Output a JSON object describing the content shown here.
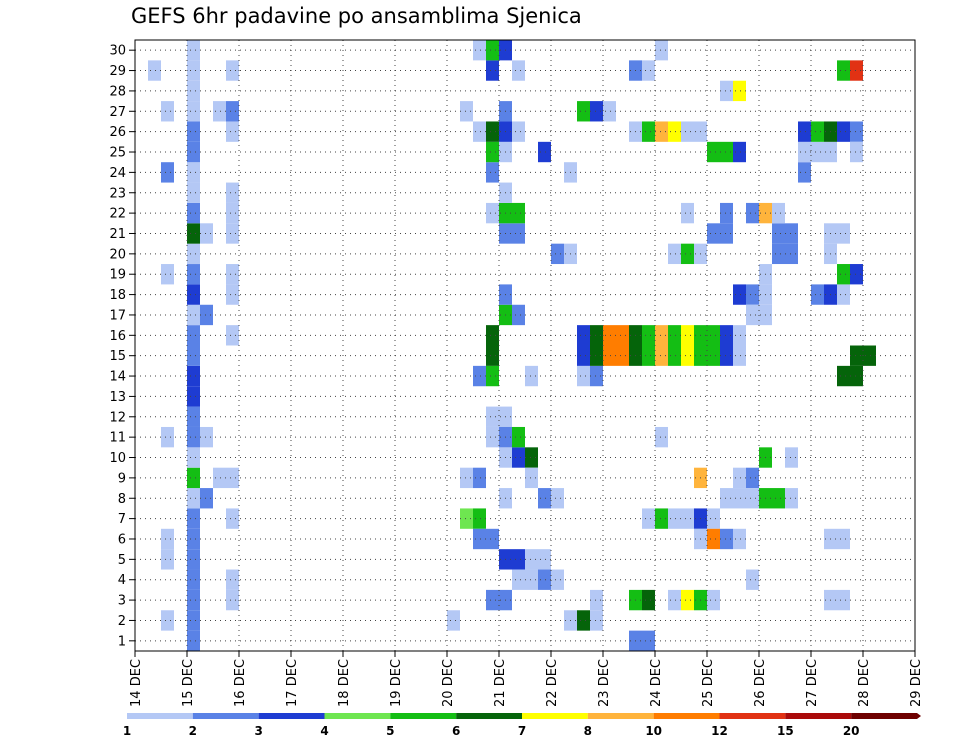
{
  "chart_data": {
    "type": "heatmap",
    "title": "GEFS 6hr padavine po ansamblima Sjenica",
    "x_tick_labels": [
      "14 DEC",
      "15 DEC",
      "16 DEC",
      "17 DEC",
      "18 DEC",
      "19 DEC",
      "20 DEC",
      "21 DEC",
      "22 DEC",
      "23 DEC",
      "24 DEC",
      "25 DEC",
      "26 DEC",
      "27 DEC",
      "28 DEC",
      "29 DEC"
    ],
    "y_tick_labels": [
      "1",
      "2",
      "3",
      "4",
      "5",
      "6",
      "7",
      "8",
      "9",
      "10",
      "11",
      "12",
      "13",
      "14",
      "15",
      "16",
      "17",
      "18",
      "19",
      "20",
      "21",
      "22",
      "23",
      "24",
      "25",
      "26",
      "27",
      "28",
      "29",
      "30"
    ],
    "time_step": "6hr",
    "ylim": [
      0.5,
      30.5
    ],
    "grid": true,
    "legend": {
      "placement": "bottom",
      "labels": [
        "1",
        "2",
        "3",
        "4",
        "5",
        "6",
        "7",
        "8",
        "10",
        "12",
        "15",
        "20"
      ],
      "colors": [
        "#b4c8f5",
        "#5a82e6",
        "#1e3cd2",
        "#6ee650",
        "#14be14",
        "#05640a",
        "#ffff00",
        "#ffb43c",
        "#ff7d00",
        "#e13214",
        "#aa0a0a",
        "#6e0000"
      ]
    },
    "cells": [
      [
        15,
        1,
        2
      ],
      [
        15,
        2,
        2
      ],
      [
        15,
        3,
        2
      ],
      [
        15,
        4,
        2
      ],
      [
        15,
        5,
        2
      ],
      [
        15,
        6,
        2
      ],
      [
        15,
        7,
        2
      ],
      [
        15,
        8,
        1
      ],
      [
        15,
        9,
        5
      ],
      [
        15,
        10,
        1
      ],
      [
        15,
        11,
        2
      ],
      [
        15,
        12,
        2
      ],
      [
        15,
        13,
        3
      ],
      [
        15,
        14,
        3
      ],
      [
        15,
        15,
        2
      ],
      [
        15,
        16,
        2
      ],
      [
        15,
        17,
        1
      ],
      [
        15,
        18,
        3
      ],
      [
        15,
        19,
        2
      ],
      [
        15,
        20,
        1
      ],
      [
        15,
        21,
        6
      ],
      [
        15,
        22,
        2
      ],
      [
        15,
        23,
        1
      ],
      [
        15,
        24,
        1
      ],
      [
        15,
        25,
        2
      ],
      [
        15,
        26,
        2
      ],
      [
        15,
        27,
        1
      ],
      [
        15,
        28,
        1
      ],
      [
        15,
        29,
        1
      ],
      [
        15,
        30,
        1
      ],
      [
        14.5,
        2,
        1
      ],
      [
        14.5,
        5,
        1
      ],
      [
        14.5,
        6,
        1
      ],
      [
        14.5,
        11,
        1
      ],
      [
        14.5,
        19,
        1
      ],
      [
        14.5,
        24,
        2
      ],
      [
        14.5,
        27,
        1
      ],
      [
        14.25,
        29,
        1
      ],
      [
        15.25,
        8,
        2
      ],
      [
        15.25,
        11,
        1
      ],
      [
        15.25,
        17,
        2
      ],
      [
        15.25,
        21,
        1
      ],
      [
        15.5,
        9,
        1
      ],
      [
        15.75,
        3,
        1
      ],
      [
        15.75,
        4,
        1
      ],
      [
        15.75,
        7,
        1
      ],
      [
        15.75,
        9,
        1
      ],
      [
        15.75,
        16,
        1
      ],
      [
        15.75,
        18,
        1
      ],
      [
        15.75,
        19,
        1
      ],
      [
        15.75,
        21,
        1
      ],
      [
        15.75,
        22,
        1
      ],
      [
        15.75,
        23,
        1
      ],
      [
        15.75,
        26,
        1
      ],
      [
        15.75,
        27,
        2
      ],
      [
        15.5,
        27,
        1
      ],
      [
        15.75,
        29,
        1
      ],
      [
        20,
        2,
        1
      ],
      [
        20.25,
        7,
        4
      ],
      [
        20.5,
        7,
        5
      ],
      [
        20.25,
        9,
        1
      ],
      [
        20.5,
        9,
        2
      ],
      [
        20.25,
        27,
        1
      ],
      [
        20.5,
        26,
        1
      ],
      [
        20.75,
        3,
        2
      ],
      [
        21,
        3,
        2
      ],
      [
        20.5,
        6,
        2
      ],
      [
        20.75,
        6,
        2
      ],
      [
        20.75,
        11,
        1
      ],
      [
        20.75,
        12,
        1
      ],
      [
        21,
        12,
        1
      ],
      [
        20.5,
        14,
        2
      ],
      [
        20.75,
        14,
        5
      ],
      [
        20.75,
        15,
        6
      ],
      [
        20.75,
        16,
        6
      ],
      [
        20.75,
        22,
        1
      ],
      [
        20.75,
        24,
        2
      ],
      [
        20.75,
        25,
        5
      ],
      [
        20.75,
        26,
        6
      ],
      [
        20.75,
        29,
        3
      ],
      [
        20.5,
        30,
        1
      ],
      [
        20.75,
        30,
        5
      ],
      [
        21,
        5,
        3
      ],
      [
        21.25,
        5,
        3
      ],
      [
        21,
        8,
        1
      ],
      [
        21,
        10,
        1
      ],
      [
        21,
        11,
        2
      ],
      [
        21,
        17,
        5
      ],
      [
        21,
        18,
        2
      ],
      [
        21,
        21,
        2
      ],
      [
        21.25,
        21,
        2
      ],
      [
        21,
        22,
        5
      ],
      [
        21.25,
        22,
        5
      ],
      [
        21,
        23,
        1
      ],
      [
        21,
        25,
        1
      ],
      [
        21,
        26,
        3
      ],
      [
        21,
        27,
        2
      ],
      [
        21,
        30,
        3
      ],
      [
        21.25,
        4,
        1
      ],
      [
        21.5,
        4,
        1
      ],
      [
        21.25,
        10,
        3
      ],
      [
        21.5,
        10,
        6
      ],
      [
        21.25,
        11,
        5
      ],
      [
        21.25,
        17,
        2
      ],
      [
        21.25,
        26,
        1
      ],
      [
        21.25,
        29,
        1
      ],
      [
        21.5,
        5,
        1
      ],
      [
        21.75,
        5,
        1
      ],
      [
        21.75,
        4,
        2
      ],
      [
        22,
        4,
        1
      ],
      [
        21.75,
        8,
        2
      ],
      [
        22,
        8,
        1
      ],
      [
        21.5,
        9,
        1
      ],
      [
        21.5,
        14,
        1
      ],
      [
        21.75,
        25,
        3
      ],
      [
        22,
        20,
        2
      ],
      [
        22.25,
        20,
        1
      ],
      [
        22.25,
        2,
        1
      ],
      [
        22.5,
        2,
        6
      ],
      [
        22.75,
        2,
        1
      ],
      [
        22.75,
        3,
        1
      ],
      [
        22.5,
        14,
        1
      ],
      [
        22.75,
        14,
        2
      ],
      [
        22.5,
        15,
        3
      ],
      [
        22.75,
        15,
        6
      ],
      [
        22.5,
        16,
        3
      ],
      [
        22.75,
        16,
        6
      ],
      [
        23,
        15,
        9
      ],
      [
        23.25,
        15,
        9
      ],
      [
        23.5,
        15,
        6
      ],
      [
        23.75,
        15,
        5
      ],
      [
        24,
        15,
        8
      ],
      [
        24.25,
        15,
        5
      ],
      [
        24.5,
        15,
        7
      ],
      [
        24.75,
        15,
        5
      ],
      [
        25,
        15,
        5
      ],
      [
        25.25,
        15,
        3
      ],
      [
        25.5,
        15,
        1
      ],
      [
        23,
        16,
        9
      ],
      [
        23.25,
        16,
        9
      ],
      [
        23.5,
        16,
        6
      ],
      [
        23.75,
        16,
        5
      ],
      [
        24,
        16,
        8
      ],
      [
        24.25,
        16,
        5
      ],
      [
        24.5,
        16,
        7
      ],
      [
        24.75,
        16,
        5
      ],
      [
        25,
        16,
        5
      ],
      [
        25.25,
        16,
        3
      ],
      [
        25.5,
        16,
        1
      ],
      [
        22.25,
        24,
        1
      ],
      [
        22.5,
        27,
        5
      ],
      [
        22.75,
        27,
        3
      ],
      [
        23,
        27,
        1
      ],
      [
        23.5,
        1,
        2
      ],
      [
        23.75,
        1,
        2
      ],
      [
        23.5,
        3,
        5
      ],
      [
        23.75,
        3,
        6
      ],
      [
        24.25,
        3,
        1
      ],
      [
        24.5,
        3,
        7
      ],
      [
        24.75,
        3,
        5
      ],
      [
        25,
        3,
        1
      ],
      [
        23.75,
        7,
        1
      ],
      [
        24,
        7,
        5
      ],
      [
        24.25,
        7,
        1
      ],
      [
        24.5,
        7,
        1
      ],
      [
        24.75,
        7,
        3
      ],
      [
        25,
        7,
        1
      ],
      [
        24,
        11,
        1
      ],
      [
        24.25,
        20,
        1
      ],
      [
        24.5,
        20,
        5
      ],
      [
        24.75,
        20,
        1
      ],
      [
        24.5,
        22,
        1
      ],
      [
        23.5,
        26,
        1
      ],
      [
        23.75,
        26,
        5
      ],
      [
        24,
        26,
        8
      ],
      [
        24.25,
        26,
        7
      ],
      [
        24.5,
        26,
        1
      ],
      [
        24.75,
        26,
        1
      ],
      [
        23.5,
        29,
        2
      ],
      [
        23.75,
        29,
        1
      ],
      [
        24,
        30,
        1
      ],
      [
        24.75,
        6,
        1
      ],
      [
        25,
        6,
        9
      ],
      [
        25.25,
        6,
        2
      ],
      [
        25.5,
        6,
        1
      ],
      [
        25.25,
        8,
        1
      ],
      [
        25.5,
        8,
        1
      ],
      [
        24.75,
        9,
        8
      ],
      [
        25.5,
        9,
        1
      ],
      [
        25.75,
        9,
        2
      ],
      [
        25,
        21,
        2
      ],
      [
        25.25,
        21,
        2
      ],
      [
        25.25,
        22,
        2
      ],
      [
        25,
        25,
        5
      ],
      [
        25.25,
        25,
        5
      ],
      [
        25.5,
        25,
        3
      ],
      [
        25.25,
        28,
        1
      ],
      [
        25.5,
        28,
        7
      ],
      [
        25.5,
        18,
        3
      ],
      [
        25.75,
        18,
        2
      ],
      [
        25.75,
        4,
        1
      ],
      [
        25.75,
        8,
        1
      ],
      [
        26,
        8,
        5
      ],
      [
        26.25,
        8,
        5
      ],
      [
        26.5,
        8,
        1
      ],
      [
        26,
        10,
        5
      ],
      [
        26.5,
        10,
        1
      ],
      [
        25.75,
        17,
        1
      ],
      [
        26,
        17,
        1
      ],
      [
        26,
        18,
        1
      ],
      [
        26,
        19,
        1
      ],
      [
        26.25,
        20,
        2
      ],
      [
        26.5,
        20,
        2
      ],
      [
        26.25,
        21,
        2
      ],
      [
        26.5,
        21,
        2
      ],
      [
        25.75,
        22,
        2
      ],
      [
        26,
        22,
        8
      ],
      [
        26.25,
        22,
        1
      ],
      [
        26.75,
        24,
        2
      ],
      [
        26.75,
        25,
        1
      ],
      [
        27,
        25,
        1
      ],
      [
        27.25,
        25,
        1
      ],
      [
        26.75,
        26,
        3
      ],
      [
        27,
        26,
        5
      ],
      [
        27.25,
        26,
        6
      ],
      [
        27.5,
        26,
        3
      ],
      [
        27.75,
        26,
        2
      ],
      [
        27.75,
        25,
        1
      ],
      [
        27.25,
        20,
        1
      ],
      [
        27,
        18,
        2
      ],
      [
        27.25,
        18,
        3
      ],
      [
        27.5,
        18,
        1
      ],
      [
        27.25,
        21,
        1
      ],
      [
        27.5,
        21,
        1
      ],
      [
        27.5,
        19,
        5
      ],
      [
        27.75,
        19,
        3
      ],
      [
        27.5,
        29,
        5
      ],
      [
        27.75,
        29,
        10
      ],
      [
        27.25,
        3,
        1
      ],
      [
        27.5,
        3,
        1
      ],
      [
        27.25,
        6,
        1
      ],
      [
        27.5,
        6,
        1
      ],
      [
        27.75,
        15,
        6
      ],
      [
        28,
        15,
        6
      ],
      [
        27.5,
        14,
        6
      ],
      [
        27.75,
        14,
        6
      ]
    ]
  }
}
